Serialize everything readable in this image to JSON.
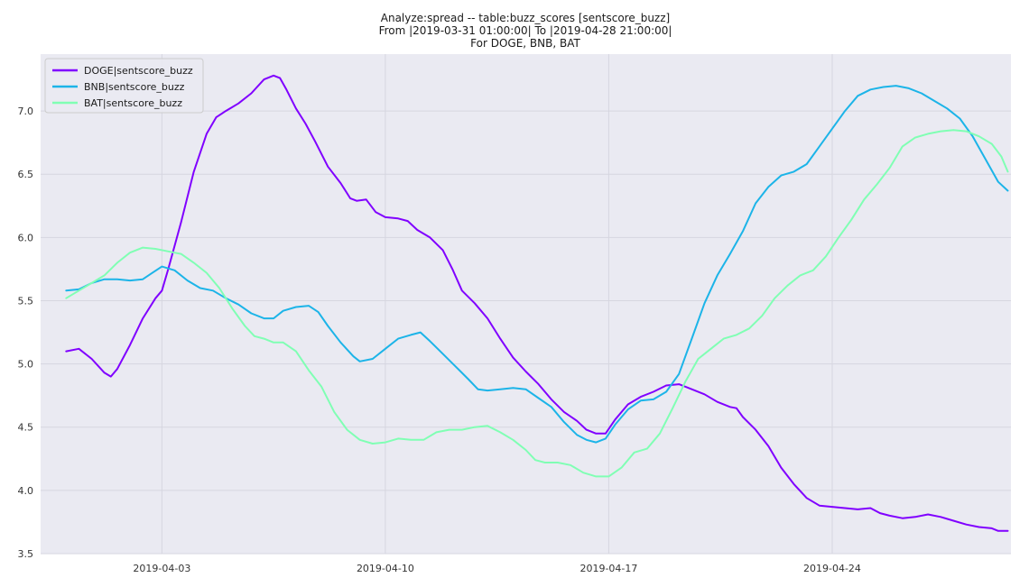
{
  "chart_data": {
    "type": "line",
    "title_lines": [
      "Analyze:spread -- table:buzz_scores [sentscore_buzz]",
      "From |2019-03-31 01:00:00| To |2019-04-28 21:00:00|",
      "For DOGE, BNB, BAT"
    ],
    "xlabel": "",
    "ylabel": "",
    "x_range_days": [
      -1.8,
      28.6
    ],
    "x_origin": "2019-04-01",
    "ylim": [
      3.5,
      7.45
    ],
    "grid": true,
    "legend_position": "top-left",
    "x_ticks": [
      {
        "day": 2,
        "label": "2019-04-03"
      },
      {
        "day": 9,
        "label": "2019-04-10"
      },
      {
        "day": 16,
        "label": "2019-04-17"
      },
      {
        "day": 23,
        "label": "2019-04-24"
      }
    ],
    "y_ticks": [
      {
        "value": 3.5,
        "label": "3.5"
      },
      {
        "value": 4.0,
        "label": "4.0"
      },
      {
        "value": 4.5,
        "label": "4.5"
      },
      {
        "value": 5.0,
        "label": "5.0"
      },
      {
        "value": 5.5,
        "label": "5.5"
      },
      {
        "value": 6.0,
        "label": "6.0"
      },
      {
        "value": 6.5,
        "label": "6.5"
      },
      {
        "value": 7.0,
        "label": "7.0"
      }
    ],
    "series": [
      {
        "name": "DOGE|sentscore_buzz",
        "color": "#8000ff",
        "points": [
          [
            -1.0,
            5.1
          ],
          [
            -0.6,
            5.12
          ],
          [
            -0.2,
            5.04
          ],
          [
            0.2,
            4.93
          ],
          [
            0.4,
            4.9
          ],
          [
            0.6,
            4.96
          ],
          [
            1.0,
            5.15
          ],
          [
            1.4,
            5.36
          ],
          [
            1.8,
            5.52
          ],
          [
            2.0,
            5.58
          ],
          [
            2.2,
            5.75
          ],
          [
            2.6,
            6.12
          ],
          [
            3.0,
            6.52
          ],
          [
            3.4,
            6.82
          ],
          [
            3.7,
            6.95
          ],
          [
            4.0,
            7.0
          ],
          [
            4.4,
            7.06
          ],
          [
            4.8,
            7.14
          ],
          [
            5.2,
            7.25
          ],
          [
            5.5,
            7.28
          ],
          [
            5.7,
            7.26
          ],
          [
            5.9,
            7.17
          ],
          [
            6.2,
            7.02
          ],
          [
            6.5,
            6.9
          ],
          [
            6.8,
            6.76
          ],
          [
            7.2,
            6.56
          ],
          [
            7.6,
            6.43
          ],
          [
            7.9,
            6.31
          ],
          [
            8.1,
            6.29
          ],
          [
            8.4,
            6.3
          ],
          [
            8.7,
            6.2
          ],
          [
            9.0,
            6.16
          ],
          [
            9.4,
            6.15
          ],
          [
            9.7,
            6.13
          ],
          [
            10.0,
            6.06
          ],
          [
            10.4,
            6.0
          ],
          [
            10.8,
            5.9
          ],
          [
            11.1,
            5.75
          ],
          [
            11.4,
            5.58
          ],
          [
            11.8,
            5.48
          ],
          [
            12.2,
            5.36
          ],
          [
            12.6,
            5.2
          ],
          [
            13.0,
            5.05
          ],
          [
            13.4,
            4.94
          ],
          [
            13.8,
            4.84
          ],
          [
            14.2,
            4.72
          ],
          [
            14.6,
            4.62
          ],
          [
            15.0,
            4.55
          ],
          [
            15.3,
            4.48
          ],
          [
            15.6,
            4.45
          ],
          [
            15.9,
            4.45
          ],
          [
            16.2,
            4.56
          ],
          [
            16.6,
            4.68
          ],
          [
            17.0,
            4.74
          ],
          [
            17.4,
            4.78
          ],
          [
            17.8,
            4.83
          ],
          [
            18.2,
            4.84
          ],
          [
            18.6,
            4.8
          ],
          [
            19.0,
            4.76
          ],
          [
            19.4,
            4.7
          ],
          [
            19.8,
            4.66
          ],
          [
            20.0,
            4.65
          ],
          [
            20.2,
            4.58
          ],
          [
            20.6,
            4.48
          ],
          [
            21.0,
            4.35
          ],
          [
            21.4,
            4.18
          ],
          [
            21.8,
            4.05
          ],
          [
            22.2,
            3.94
          ],
          [
            22.6,
            3.88
          ],
          [
            23.0,
            3.87
          ],
          [
            23.4,
            3.86
          ],
          [
            23.8,
            3.85
          ],
          [
            24.2,
            3.86
          ],
          [
            24.5,
            3.82
          ],
          [
            24.8,
            3.8
          ],
          [
            25.2,
            3.78
          ],
          [
            25.6,
            3.79
          ],
          [
            26.0,
            3.81
          ],
          [
            26.4,
            3.79
          ],
          [
            26.8,
            3.76
          ],
          [
            27.2,
            3.73
          ],
          [
            27.6,
            3.71
          ],
          [
            28.0,
            3.7
          ],
          [
            28.2,
            3.68
          ],
          [
            28.5,
            3.68
          ]
        ]
      },
      {
        "name": "BNB|sentscore_buzz",
        "color": "#1cb4e8",
        "points": [
          [
            -1.0,
            5.58
          ],
          [
            -0.6,
            5.59
          ],
          [
            -0.2,
            5.64
          ],
          [
            0.2,
            5.67
          ],
          [
            0.6,
            5.67
          ],
          [
            1.0,
            5.66
          ],
          [
            1.4,
            5.67
          ],
          [
            1.7,
            5.72
          ],
          [
            2.0,
            5.77
          ],
          [
            2.4,
            5.74
          ],
          [
            2.8,
            5.66
          ],
          [
            3.2,
            5.6
          ],
          [
            3.6,
            5.58
          ],
          [
            4.0,
            5.52
          ],
          [
            4.4,
            5.47
          ],
          [
            4.8,
            5.4
          ],
          [
            5.2,
            5.36
          ],
          [
            5.5,
            5.36
          ],
          [
            5.8,
            5.42
          ],
          [
            6.2,
            5.45
          ],
          [
            6.6,
            5.46
          ],
          [
            6.9,
            5.41
          ],
          [
            7.2,
            5.3
          ],
          [
            7.6,
            5.17
          ],
          [
            8.0,
            5.06
          ],
          [
            8.2,
            5.02
          ],
          [
            8.6,
            5.04
          ],
          [
            9.0,
            5.12
          ],
          [
            9.4,
            5.2
          ],
          [
            9.8,
            5.23
          ],
          [
            10.1,
            5.25
          ],
          [
            10.4,
            5.18
          ],
          [
            10.8,
            5.08
          ],
          [
            11.2,
            4.98
          ],
          [
            11.6,
            4.88
          ],
          [
            11.9,
            4.8
          ],
          [
            12.2,
            4.79
          ],
          [
            12.6,
            4.8
          ],
          [
            13.0,
            4.81
          ],
          [
            13.4,
            4.8
          ],
          [
            13.8,
            4.73
          ],
          [
            14.2,
            4.66
          ],
          [
            14.6,
            4.54
          ],
          [
            15.0,
            4.44
          ],
          [
            15.3,
            4.4
          ],
          [
            15.6,
            4.38
          ],
          [
            15.9,
            4.41
          ],
          [
            16.2,
            4.52
          ],
          [
            16.6,
            4.64
          ],
          [
            17.0,
            4.71
          ],
          [
            17.4,
            4.72
          ],
          [
            17.8,
            4.78
          ],
          [
            18.2,
            4.92
          ],
          [
            18.6,
            5.2
          ],
          [
            19.0,
            5.48
          ],
          [
            19.4,
            5.7
          ],
          [
            19.8,
            5.87
          ],
          [
            20.2,
            6.05
          ],
          [
            20.6,
            6.27
          ],
          [
            21.0,
            6.4
          ],
          [
            21.4,
            6.49
          ],
          [
            21.8,
            6.52
          ],
          [
            22.2,
            6.58
          ],
          [
            22.6,
            6.72
          ],
          [
            23.0,
            6.86
          ],
          [
            23.4,
            7.0
          ],
          [
            23.8,
            7.12
          ],
          [
            24.2,
            7.17
          ],
          [
            24.6,
            7.19
          ],
          [
            25.0,
            7.2
          ],
          [
            25.4,
            7.18
          ],
          [
            25.8,
            7.14
          ],
          [
            26.2,
            7.08
          ],
          [
            26.6,
            7.02
          ],
          [
            27.0,
            6.94
          ],
          [
            27.4,
            6.8
          ],
          [
            27.8,
            6.62
          ],
          [
            28.2,
            6.44
          ],
          [
            28.5,
            6.37
          ]
        ]
      },
      {
        "name": "BAT|sentscore_buzz",
        "color": "#80ffb4",
        "points": [
          [
            -1.0,
            5.52
          ],
          [
            -0.6,
            5.58
          ],
          [
            -0.2,
            5.64
          ],
          [
            0.2,
            5.7
          ],
          [
            0.6,
            5.8
          ],
          [
            1.0,
            5.88
          ],
          [
            1.4,
            5.92
          ],
          [
            1.8,
            5.91
          ],
          [
            2.2,
            5.89
          ],
          [
            2.6,
            5.87
          ],
          [
            3.0,
            5.8
          ],
          [
            3.4,
            5.72
          ],
          [
            3.8,
            5.6
          ],
          [
            4.2,
            5.44
          ],
          [
            4.6,
            5.3
          ],
          [
            4.9,
            5.22
          ],
          [
            5.2,
            5.2
          ],
          [
            5.5,
            5.17
          ],
          [
            5.8,
            5.17
          ],
          [
            6.2,
            5.1
          ],
          [
            6.6,
            4.95
          ],
          [
            7.0,
            4.82
          ],
          [
            7.4,
            4.62
          ],
          [
            7.8,
            4.48
          ],
          [
            8.2,
            4.4
          ],
          [
            8.6,
            4.37
          ],
          [
            9.0,
            4.38
          ],
          [
            9.4,
            4.41
          ],
          [
            9.8,
            4.4
          ],
          [
            10.2,
            4.4
          ],
          [
            10.6,
            4.46
          ],
          [
            11.0,
            4.48
          ],
          [
            11.4,
            4.48
          ],
          [
            11.8,
            4.5
          ],
          [
            12.2,
            4.51
          ],
          [
            12.6,
            4.46
          ],
          [
            13.0,
            4.4
          ],
          [
            13.4,
            4.32
          ],
          [
            13.7,
            4.24
          ],
          [
            14.0,
            4.22
          ],
          [
            14.4,
            4.22
          ],
          [
            14.8,
            4.2
          ],
          [
            15.2,
            4.14
          ],
          [
            15.6,
            4.11
          ],
          [
            16.0,
            4.11
          ],
          [
            16.4,
            4.18
          ],
          [
            16.8,
            4.3
          ],
          [
            17.2,
            4.33
          ],
          [
            17.6,
            4.45
          ],
          [
            18.0,
            4.65
          ],
          [
            18.4,
            4.86
          ],
          [
            18.8,
            5.04
          ],
          [
            19.2,
            5.12
          ],
          [
            19.6,
            5.2
          ],
          [
            20.0,
            5.23
          ],
          [
            20.4,
            5.28
          ],
          [
            20.8,
            5.38
          ],
          [
            21.2,
            5.52
          ],
          [
            21.6,
            5.62
          ],
          [
            22.0,
            5.7
          ],
          [
            22.4,
            5.74
          ],
          [
            22.8,
            5.85
          ],
          [
            23.2,
            6.0
          ],
          [
            23.6,
            6.14
          ],
          [
            24.0,
            6.3
          ],
          [
            24.4,
            6.42
          ],
          [
            24.8,
            6.55
          ],
          [
            25.2,
            6.72
          ],
          [
            25.6,
            6.79
          ],
          [
            26.0,
            6.82
          ],
          [
            26.4,
            6.84
          ],
          [
            26.8,
            6.85
          ],
          [
            27.2,
            6.84
          ],
          [
            27.6,
            6.8
          ],
          [
            28.0,
            6.74
          ],
          [
            28.3,
            6.64
          ],
          [
            28.5,
            6.52
          ]
        ]
      }
    ]
  }
}
